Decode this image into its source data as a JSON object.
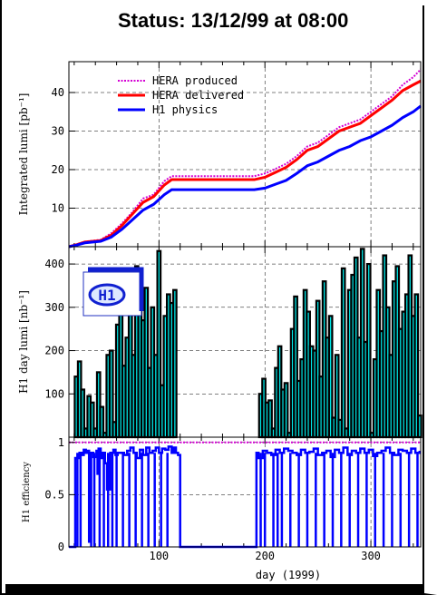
{
  "page_title": "Status: 13/12/99 at 08:00",
  "colors": {
    "hera_produced": "#d400d4",
    "hera_delivered": "#ff0000",
    "h1_physics": "#0000ff",
    "day_fill": "#00e5e5",
    "day_outline": "#000000",
    "efficiency": "#0000ff",
    "ref_line": "#d400d4",
    "logo_blue": "#1020d0"
  },
  "logo": {
    "text": "H1"
  },
  "chart_data": [
    {
      "type": "line",
      "ylabel": "Integrated lumi [pb⁻¹]",
      "xlim": [
        15,
        347
      ],
      "ylim": [
        0,
        48
      ],
      "yticks": [
        "10",
        "20",
        "30",
        "40"
      ],
      "ytick_values": [
        10,
        20,
        30,
        40
      ],
      "legend_position": "top-left",
      "x": [
        15,
        22,
        30,
        45,
        55,
        65,
        75,
        85,
        95,
        105,
        112,
        120,
        130,
        140,
        150,
        160,
        170,
        180,
        190,
        200,
        210,
        220,
        230,
        240,
        250,
        260,
        270,
        280,
        290,
        300,
        310,
        320,
        330,
        340,
        347
      ],
      "series": [
        {
          "name": "HERA produced",
          "values": [
            0,
            0.6,
            1.3,
            1.8,
            3.5,
            6,
            9,
            12.5,
            13.5,
            17,
            18.3,
            18.3,
            18.3,
            18.3,
            18.3,
            18.3,
            18.3,
            18.3,
            18.3,
            19,
            20.2,
            21.5,
            23.5,
            26,
            27,
            29,
            31,
            32,
            33,
            35,
            37,
            39,
            42,
            44,
            46
          ]
        },
        {
          "name": "HERA delivered",
          "values": [
            0,
            0.5,
            1.2,
            1.6,
            3,
            5.5,
            8.5,
            11.5,
            13,
            16,
            17.4,
            17.4,
            17.4,
            17.4,
            17.4,
            17.4,
            17.4,
            17.4,
            17.4,
            18,
            19.3,
            20.6,
            22.6,
            25,
            26,
            28,
            30,
            31,
            32,
            34,
            36,
            38,
            40.5,
            42,
            43
          ]
        },
        {
          "name": "H1 physics",
          "values": [
            0,
            0.4,
            1,
            1.4,
            2.5,
            4.5,
            7,
            9.5,
            11,
            13.5,
            14.8,
            14.8,
            14.8,
            14.8,
            14.8,
            14.8,
            14.8,
            14.8,
            14.8,
            15.2,
            16.2,
            17.2,
            19,
            21,
            22,
            23.5,
            25,
            26,
            27.5,
            28.5,
            30,
            31.5,
            33.5,
            35,
            36.5
          ]
        }
      ]
    },
    {
      "type": "bar",
      "ylabel": "H1 day lumi [nb⁻¹]",
      "xlim": [
        15,
        347
      ],
      "ylim": [
        0,
        440
      ],
      "yticks": [
        "100",
        "200",
        "300",
        "400"
      ],
      "ytick_values": [
        100,
        200,
        300,
        400
      ],
      "x": [
        22,
        25,
        28,
        31,
        34,
        37,
        40,
        43,
        46,
        49,
        52,
        55,
        58,
        61,
        64,
        67,
        70,
        73,
        76,
        79,
        82,
        85,
        88,
        91,
        94,
        97,
        100,
        103,
        106,
        109,
        112,
        115,
        196,
        199,
        202,
        205,
        208,
        211,
        214,
        217,
        220,
        223,
        226,
        229,
        232,
        235,
        238,
        241,
        244,
        247,
        250,
        253,
        256,
        259,
        262,
        265,
        268,
        271,
        274,
        277,
        280,
        283,
        286,
        289,
        292,
        295,
        298,
        301,
        304,
        307,
        310,
        313,
        316,
        319,
        322,
        325,
        328,
        331,
        334,
        337,
        340,
        343,
        346
      ],
      "values": [
        140,
        175,
        110,
        20,
        95,
        80,
        20,
        150,
        70,
        10,
        190,
        200,
        35,
        260,
        340,
        165,
        230,
        355,
        190,
        395,
        290,
        270,
        345,
        160,
        300,
        190,
        430,
        120,
        280,
        330,
        310,
        340,
        100,
        135,
        80,
        85,
        20,
        160,
        210,
        110,
        125,
        10,
        250,
        325,
        130,
        180,
        340,
        290,
        210,
        200,
        315,
        140,
        360,
        230,
        280,
        45,
        190,
        40,
        390,
        20,
        340,
        375,
        415,
        230,
        435,
        220,
        400,
        10,
        180,
        340,
        245,
        420,
        300,
        190,
        360,
        395,
        250,
        290,
        330,
        420,
        280,
        330,
        50
      ]
    },
    {
      "type": "line",
      "ylabel": "H1 efficiency",
      "xlabel": "day (1999)",
      "xlim": [
        15,
        347
      ],
      "ylim": [
        0,
        1.05
      ],
      "yticks": [
        "0",
        "0.5",
        "1"
      ],
      "ytick_values": [
        0,
        0.5,
        1
      ],
      "xticks": [
        "100",
        "200",
        "300"
      ],
      "xtick_values": [
        100,
        200,
        300
      ],
      "reference": 1,
      "x": [
        15,
        20,
        21,
        25,
        27,
        29,
        31,
        33,
        34,
        35,
        38,
        41,
        42,
        43,
        45,
        47,
        49,
        51,
        54,
        57,
        59,
        61,
        64,
        67,
        70,
        73,
        76,
        79,
        82,
        85,
        88,
        91,
        94,
        97,
        100,
        103,
        106,
        109,
        112,
        114,
        116,
        118,
        120,
        190,
        192,
        194,
        198,
        202,
        206,
        210,
        214,
        218,
        222,
        226,
        230,
        234,
        238,
        242,
        246,
        250,
        254,
        258,
        262,
        266,
        270,
        274,
        278,
        282,
        286,
        290,
        294,
        298,
        302,
        306,
        310,
        314,
        318,
        322,
        326,
        330,
        334,
        338,
        342,
        346
      ],
      "values": [
        0,
        0,
        0.85,
        0.9,
        0.88,
        0.93,
        0.9,
        0.92,
        0.05,
        0.9,
        0.86,
        0.92,
        0.7,
        0.94,
        0.85,
        0.9,
        0.8,
        0.55,
        0.9,
        0.93,
        0.88,
        0.9,
        0.9,
        0.88,
        0.92,
        0.95,
        0.9,
        0.85,
        0.93,
        0.88,
        0.95,
        0.9,
        0.92,
        0.95,
        0.9,
        0.94,
        0.93,
        0.96,
        0.9,
        0.95,
        0.9,
        0.88,
        0,
        0,
        0.9,
        0.85,
        0.92,
        0.9,
        0.88,
        0.93,
        0.9,
        0.94,
        0.92,
        0.9,
        0.88,
        0.93,
        0.9,
        0.91,
        0.94,
        0.88,
        0.9,
        0.92,
        0.86,
        0.93,
        0.9,
        0.95,
        0.88,
        0.92,
        0.9,
        0.94,
        0.9,
        0.93,
        0.87,
        0.9,
        0.92,
        0.95,
        0.9,
        0.88,
        0.93,
        0.92,
        0.9,
        0.94,
        0.9,
        0.92
      ],
      "dips": [
        23,
        26,
        36,
        39,
        44,
        48,
        52,
        56,
        60,
        66,
        72,
        78,
        84,
        90,
        96,
        102,
        108,
        196,
        200,
        208,
        212,
        216,
        224,
        232,
        240,
        248,
        256,
        264,
        272,
        280,
        288,
        296,
        304,
        312,
        320,
        328,
        336,
        344
      ]
    }
  ]
}
